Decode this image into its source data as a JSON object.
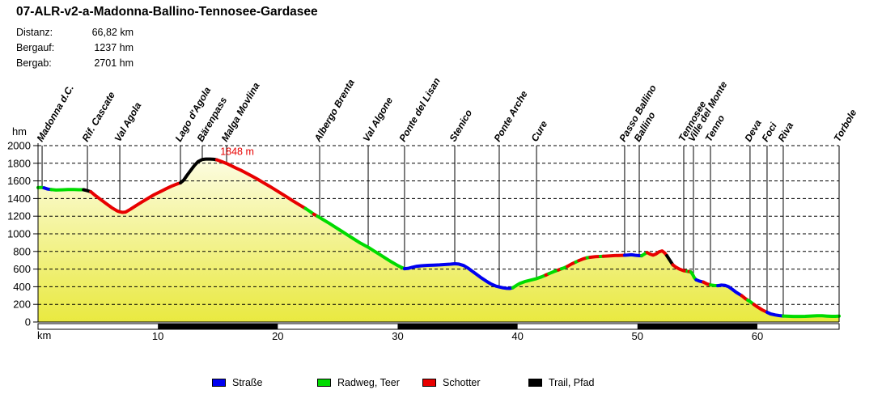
{
  "title": "07-ALR-v2-a-Madonna-Ballino-Tennosee-Gardasee",
  "stats": [
    {
      "label": "Distanz:",
      "value": "66,82 km"
    },
    {
      "label": "Bergauf:",
      "value": "1237 hm"
    },
    {
      "label": "Bergab:",
      "value": "2701 hm"
    }
  ],
  "legend": [
    {
      "label": "Straße",
      "surface": "strasse",
      "color": "#0000F0"
    },
    {
      "label": "Radweg, Teer",
      "surface": "radweg",
      "color": "#00DB00"
    },
    {
      "label": "Schotter",
      "surface": "schotter",
      "color": "#E80000"
    },
    {
      "label": "Trail, Pfad",
      "surface": "trail",
      "color": "#000000"
    }
  ],
  "chart_data": {
    "type": "line",
    "title": "",
    "xlabel": "km",
    "ylabel": "hm",
    "xlim": [
      0,
      66.82
    ],
    "ylim": [
      0,
      2000
    ],
    "x_ticks": [
      10,
      20,
      30,
      40,
      50,
      60
    ],
    "y_ticks": [
      0,
      200,
      400,
      600,
      800,
      1000,
      1200,
      1400,
      1600,
      1800,
      2000
    ],
    "grid": "horizontal-dashed",
    "fill_gradient_top": "#FEFEEE",
    "fill_gradient_bottom": "#E9E940",
    "scale_bar_blocks_km": [
      [
        10,
        20
      ],
      [
        30,
        40
      ],
      [
        50,
        60
      ]
    ],
    "peak_annotation": {
      "text": "1848 m",
      "km": 15.2,
      "hm": 1895,
      "color": "#E80000"
    },
    "surface_colors": {
      "strasse": "#0000F0",
      "radweg": "#00DB00",
      "schotter": "#E80000",
      "trail": "#000000"
    },
    "waypoints": [
      {
        "name": "Madonna d.C.",
        "km": 0.34,
        "hm": 1525
      },
      {
        "name": "Rif. Cascate",
        "km": 4.12,
        "hm": 1489
      },
      {
        "name": "Val Agola",
        "km": 6.82,
        "hm": 1250
      },
      {
        "name": "Lago d'Agola",
        "km": 11.88,
        "hm": 1578
      },
      {
        "name": "Bärenpass",
        "km": 13.7,
        "hm": 1843
      },
      {
        "name": "Malga Movlina",
        "km": 15.73,
        "hm": 1797
      },
      {
        "name": "Albergo Brenta",
        "km": 23.49,
        "hm": 1185
      },
      {
        "name": "Val Algone",
        "km": 27.54,
        "hm": 848
      },
      {
        "name": "Ponte del Lisan",
        "km": 30.57,
        "hm": 605
      },
      {
        "name": "Stenico",
        "km": 34.76,
        "hm": 661
      },
      {
        "name": "Ponte Arche",
        "km": 38.47,
        "hm": 397
      },
      {
        "name": "Cure",
        "km": 41.58,
        "hm": 492
      },
      {
        "name": "Passo Ballino",
        "km": 48.93,
        "hm": 757
      },
      {
        "name": "Ballino",
        "km": 50.15,
        "hm": 752
      },
      {
        "name": "Tennosee",
        "km": 53.86,
        "hm": 582
      },
      {
        "name": "Ville del Monte",
        "km": 54.67,
        "hm": 521
      },
      {
        "name": "Tenno",
        "km": 56.09,
        "hm": 420
      },
      {
        "name": "Deva",
        "km": 59.39,
        "hm": 232
      },
      {
        "name": "Foci",
        "km": 60.81,
        "hm": 110
      },
      {
        "name": "Riva",
        "km": 62.16,
        "hm": 68
      },
      {
        "name": "Torbole",
        "km": 66.82,
        "hm": 67
      }
    ],
    "segments": [
      {
        "surface": "radweg",
        "points": [
          [
            0,
            1524
          ],
          [
            0.25,
            1526
          ],
          [
            0.5,
            1521
          ]
        ]
      },
      {
        "surface": "strasse",
        "points": [
          [
            0.5,
            1521
          ],
          [
            0.8,
            1507
          ],
          [
            1.1,
            1502
          ]
        ]
      },
      {
        "surface": "radweg",
        "points": [
          [
            1.1,
            1502
          ],
          [
            1.5,
            1496
          ],
          [
            2.0,
            1499
          ],
          [
            2.5,
            1503
          ],
          [
            3.0,
            1502
          ],
          [
            3.4,
            1500
          ],
          [
            3.8,
            1500
          ]
        ]
      },
      {
        "surface": "trail",
        "points": [
          [
            3.8,
            1500
          ],
          [
            4.12,
            1489
          ],
          [
            4.4,
            1477
          ]
        ]
      },
      {
        "surface": "schotter",
        "points": [
          [
            4.4,
            1477
          ],
          [
            4.8,
            1432
          ],
          [
            5.2,
            1392
          ],
          [
            5.7,
            1340
          ],
          [
            6.2,
            1292
          ],
          [
            6.6,
            1260
          ],
          [
            6.82,
            1250
          ],
          [
            7.05,
            1243
          ],
          [
            7.3,
            1247
          ],
          [
            7.7,
            1278
          ],
          [
            8.2,
            1322
          ],
          [
            8.7,
            1364
          ],
          [
            9.2,
            1405
          ],
          [
            9.7,
            1445
          ],
          [
            10.2,
            1478
          ],
          [
            10.7,
            1512
          ],
          [
            11.2,
            1544
          ],
          [
            11.6,
            1565
          ],
          [
            11.88,
            1578
          ]
        ]
      },
      {
        "surface": "trail",
        "points": [
          [
            11.88,
            1578
          ],
          [
            12.15,
            1608
          ],
          [
            12.45,
            1668
          ],
          [
            12.75,
            1722
          ],
          [
            13.05,
            1775
          ],
          [
            13.35,
            1818
          ],
          [
            13.7,
            1843
          ],
          [
            14.0,
            1848
          ],
          [
            14.35,
            1848
          ],
          [
            14.65,
            1845
          ],
          [
            14.9,
            1839
          ]
        ]
      },
      {
        "surface": "schotter",
        "points": [
          [
            14.9,
            1839
          ],
          [
            15.3,
            1820
          ],
          [
            15.73,
            1797
          ],
          [
            16.1,
            1773
          ],
          [
            16.5,
            1746
          ],
          [
            16.9,
            1722
          ],
          [
            17.3,
            1694
          ],
          [
            17.8,
            1658
          ],
          [
            18.3,
            1620
          ],
          [
            18.8,
            1580
          ],
          [
            19.3,
            1540
          ],
          [
            19.8,
            1498
          ],
          [
            20.3,
            1456
          ],
          [
            20.8,
            1414
          ],
          [
            21.3,
            1370
          ],
          [
            21.8,
            1328
          ],
          [
            22.3,
            1288
          ]
        ]
      },
      {
        "surface": "radweg",
        "points": [
          [
            22.3,
            1288
          ],
          [
            22.7,
            1252
          ],
          [
            23.0,
            1222
          ]
        ]
      },
      {
        "surface": "schotter",
        "points": [
          [
            23.0,
            1222
          ],
          [
            23.3,
            1200
          ]
        ]
      },
      {
        "surface": "radweg",
        "points": [
          [
            23.3,
            1200
          ],
          [
            23.8,
            1160
          ],
          [
            24.3,
            1118
          ],
          [
            24.8,
            1075
          ],
          [
            25.3,
            1032
          ],
          [
            25.8,
            988
          ],
          [
            26.3,
            945
          ],
          [
            26.8,
            902
          ],
          [
            27.3,
            865
          ],
          [
            27.54,
            848
          ],
          [
            28.0,
            808
          ],
          [
            28.5,
            765
          ],
          [
            29.0,
            722
          ],
          [
            29.5,
            680
          ],
          [
            30.0,
            640
          ],
          [
            30.3,
            620
          ],
          [
            30.57,
            605
          ]
        ]
      },
      {
        "surface": "strasse",
        "points": [
          [
            30.57,
            605
          ],
          [
            30.85,
            607
          ],
          [
            31.2,
            620
          ],
          [
            31.6,
            632
          ],
          [
            32.0,
            638
          ],
          [
            32.5,
            642
          ],
          [
            33.0,
            645
          ],
          [
            33.5,
            648
          ],
          [
            34.0,
            652
          ],
          [
            34.4,
            656
          ],
          [
            34.76,
            661
          ],
          [
            35.1,
            657
          ],
          [
            35.5,
            640
          ],
          [
            35.85,
            612
          ],
          [
            36.2,
            578
          ],
          [
            36.6,
            538
          ],
          [
            37.0,
            498
          ],
          [
            37.4,
            462
          ],
          [
            37.8,
            430
          ],
          [
            38.2,
            406
          ],
          [
            38.47,
            397
          ],
          [
            38.8,
            387
          ],
          [
            39.1,
            382
          ],
          [
            39.35,
            381
          ],
          [
            39.6,
            388
          ]
        ]
      },
      {
        "surface": "radweg",
        "points": [
          [
            39.6,
            388
          ],
          [
            39.9,
            415
          ],
          [
            40.2,
            438
          ],
          [
            40.6,
            458
          ],
          [
            41.0,
            472
          ],
          [
            41.58,
            492
          ],
          [
            42.0,
            512
          ],
          [
            42.35,
            532
          ]
        ]
      },
      {
        "surface": "schotter",
        "points": [
          [
            42.35,
            532
          ],
          [
            42.6,
            548
          ]
        ]
      },
      {
        "surface": "radweg",
        "points": [
          [
            42.6,
            548
          ],
          [
            43.0,
            570
          ],
          [
            43.4,
            590
          ]
        ]
      },
      {
        "surface": "schotter",
        "points": [
          [
            43.4,
            590
          ],
          [
            43.65,
            603
          ]
        ]
      },
      {
        "surface": "radweg",
        "points": [
          [
            43.65,
            603
          ],
          [
            43.9,
            615
          ],
          [
            44.15,
            630
          ]
        ]
      },
      {
        "surface": "schotter",
        "points": [
          [
            44.15,
            630
          ],
          [
            44.5,
            658
          ],
          [
            44.85,
            680
          ]
        ]
      },
      {
        "surface": "radweg",
        "points": [
          [
            44.85,
            680
          ],
          [
            45.1,
            695
          ]
        ]
      },
      {
        "surface": "schotter",
        "points": [
          [
            45.1,
            695
          ],
          [
            45.45,
            715
          ],
          [
            45.8,
            728
          ]
        ]
      },
      {
        "surface": "radweg",
        "points": [
          [
            45.8,
            728
          ],
          [
            46.05,
            734
          ]
        ]
      },
      {
        "surface": "schotter",
        "points": [
          [
            46.05,
            734
          ],
          [
            46.5,
            740
          ],
          [
            46.9,
            743
          ]
        ]
      },
      {
        "surface": "radweg",
        "points": [
          [
            46.9,
            743
          ],
          [
            47.15,
            745
          ]
        ]
      },
      {
        "surface": "schotter",
        "points": [
          [
            47.15,
            745
          ],
          [
            47.6,
            749
          ],
          [
            48.1,
            753
          ],
          [
            48.5,
            755
          ],
          [
            48.93,
            757
          ]
        ]
      },
      {
        "surface": "strasse",
        "points": [
          [
            48.93,
            757
          ],
          [
            49.2,
            760
          ],
          [
            49.5,
            762
          ],
          [
            49.8,
            757
          ],
          [
            50.15,
            752
          ],
          [
            50.35,
            751
          ]
        ]
      },
      {
        "surface": "radweg",
        "points": [
          [
            50.35,
            751
          ],
          [
            50.55,
            768
          ],
          [
            50.8,
            788
          ]
        ]
      },
      {
        "surface": "schotter",
        "points": [
          [
            50.8,
            788
          ],
          [
            51.05,
            770
          ],
          [
            51.3,
            758
          ],
          [
            51.55,
            772
          ],
          [
            51.8,
            795
          ],
          [
            52.05,
            806
          ],
          [
            52.25,
            786
          ],
          [
            52.45,
            752
          ]
        ]
      },
      {
        "surface": "trail",
        "points": [
          [
            52.45,
            752
          ],
          [
            52.7,
            700
          ],
          [
            52.95,
            648
          ]
        ]
      },
      {
        "surface": "schotter",
        "points": [
          [
            52.95,
            648
          ],
          [
            53.2,
            622
          ],
          [
            53.5,
            600
          ],
          [
            53.86,
            582
          ],
          [
            54.15,
            575
          ]
        ]
      },
      {
        "surface": "radweg",
        "points": [
          [
            54.15,
            575
          ],
          [
            54.3,
            572
          ]
        ]
      },
      {
        "surface": "schotter",
        "points": [
          [
            54.3,
            572
          ],
          [
            54.45,
            568
          ]
        ]
      },
      {
        "surface": "radweg",
        "points": [
          [
            54.45,
            568
          ],
          [
            54.6,
            540
          ],
          [
            54.75,
            500
          ],
          [
            54.9,
            478
          ]
        ]
      },
      {
        "surface": "strasse",
        "points": [
          [
            54.9,
            478
          ],
          [
            55.2,
            462
          ],
          [
            55.5,
            452
          ]
        ]
      },
      {
        "surface": "schotter",
        "points": [
          [
            55.5,
            452
          ],
          [
            55.8,
            432
          ],
          [
            56.09,
            420
          ]
        ]
      },
      {
        "surface": "radweg",
        "points": [
          [
            56.09,
            420
          ],
          [
            56.4,
            414
          ],
          [
            56.7,
            412
          ]
        ]
      },
      {
        "surface": "strasse",
        "points": [
          [
            56.7,
            412
          ],
          [
            57.0,
            418
          ],
          [
            57.3,
            415
          ],
          [
            57.6,
            400
          ],
          [
            57.9,
            372
          ],
          [
            58.2,
            340
          ],
          [
            58.5,
            315
          ],
          [
            58.7,
            298
          ]
        ]
      },
      {
        "surface": "schotter",
        "points": [
          [
            58.7,
            298
          ],
          [
            59.0,
            265
          ],
          [
            59.2,
            248
          ]
        ]
      },
      {
        "surface": "radweg",
        "points": [
          [
            59.2,
            248
          ],
          [
            59.39,
            232
          ],
          [
            59.7,
            200
          ]
        ]
      },
      {
        "surface": "schotter",
        "points": [
          [
            59.7,
            200
          ],
          [
            60.0,
            172
          ],
          [
            60.4,
            138
          ],
          [
            60.81,
            110
          ]
        ]
      },
      {
        "surface": "strasse",
        "points": [
          [
            60.81,
            110
          ],
          [
            61.1,
            92
          ],
          [
            61.5,
            80
          ],
          [
            61.8,
            73
          ],
          [
            62.16,
            68
          ]
        ]
      },
      {
        "surface": "radweg",
        "points": [
          [
            62.16,
            68
          ],
          [
            62.6,
            65
          ],
          [
            63.0,
            63
          ],
          [
            63.5,
            63
          ],
          [
            64.0,
            64
          ],
          [
            64.5,
            68
          ],
          [
            65.0,
            72
          ],
          [
            65.4,
            71
          ],
          [
            65.8,
            67
          ],
          [
            66.2,
            64
          ],
          [
            66.5,
            64
          ],
          [
            66.82,
            67
          ]
        ]
      }
    ]
  }
}
